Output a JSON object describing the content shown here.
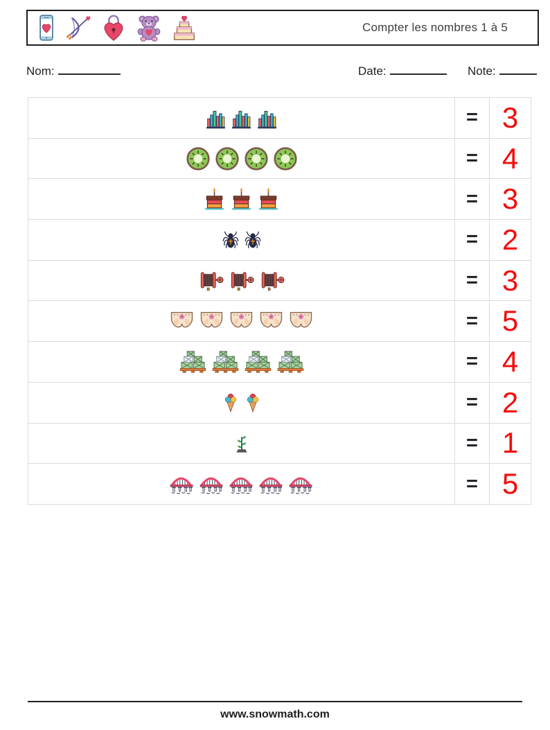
{
  "header": {
    "icons": [
      "phone-heart-icon",
      "cupid-bow-icon",
      "heart-lock-icon",
      "teddy-bear-icon",
      "wedding-cake-icon"
    ],
    "title": "Compter les nombres 1 à 5"
  },
  "fields": {
    "name_label": "Nom:",
    "date_label": "Date:",
    "note_label": "Note:"
  },
  "worksheet": {
    "equals_symbol": "=",
    "answer_color": "#f40b0b",
    "rows": [
      {
        "item": "bar-chart",
        "count": 3,
        "answer": "3"
      },
      {
        "item": "kiwi-slice",
        "count": 4,
        "answer": "4"
      },
      {
        "item": "birthday-cake",
        "count": 3,
        "answer": "3"
      },
      {
        "item": "spider",
        "count": 2,
        "answer": "2"
      },
      {
        "item": "hose-reel",
        "count": 3,
        "answer": "3"
      },
      {
        "item": "diaper",
        "count": 5,
        "answer": "5"
      },
      {
        "item": "crate-pallet",
        "count": 4,
        "answer": "4"
      },
      {
        "item": "ice-cream-cone",
        "count": 2,
        "answer": "2"
      },
      {
        "item": "plant-sprout",
        "count": 1,
        "answer": "1"
      },
      {
        "item": "arch-bridge",
        "count": 5,
        "answer": "5"
      }
    ]
  },
  "footer": {
    "url": "www.snowmath.com"
  }
}
